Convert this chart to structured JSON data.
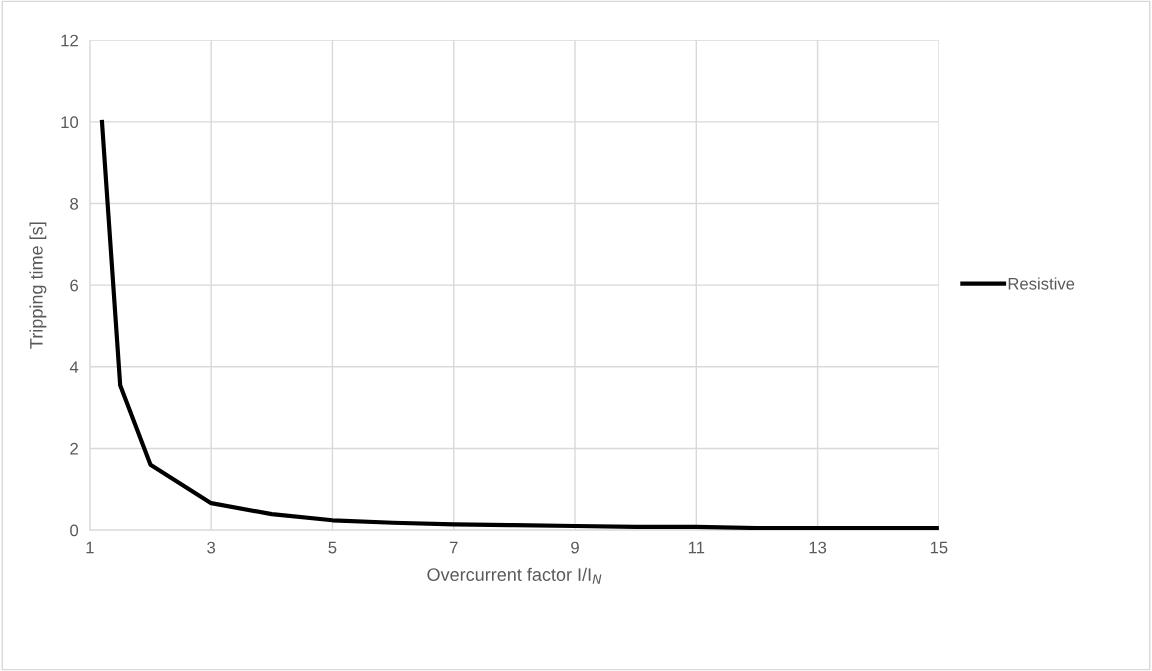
{
  "chart_data": {
    "type": "line",
    "xlabel": "Overcurrent factor I/I$_{N}$",
    "ylabel": "Tripping time [s]",
    "x": [
      1.2,
      1.5,
      2,
      3,
      4,
      5,
      6,
      7,
      8,
      9,
      10,
      11,
      12,
      13,
      14,
      15
    ],
    "series": [
      {
        "name": "Resistive",
        "color": "#000000",
        "values": [
          10,
          3.55,
          1.6,
          0.66,
          0.39,
          0.24,
          0.18,
          0.14,
          0.12,
          0.1,
          0.08,
          0.08,
          0.05,
          0.05,
          0.05,
          0.05
        ]
      }
    ],
    "xlim": [
      1,
      15
    ],
    "xticks": [
      1,
      3,
      5,
      7,
      9,
      11,
      13,
      15
    ],
    "ylim": [
      0,
      12
    ],
    "yticks": [
      0,
      2,
      4,
      6,
      8,
      10,
      12
    ],
    "grid": true,
    "legend": "right",
    "marker": "none",
    "line_style": "solid"
  }
}
